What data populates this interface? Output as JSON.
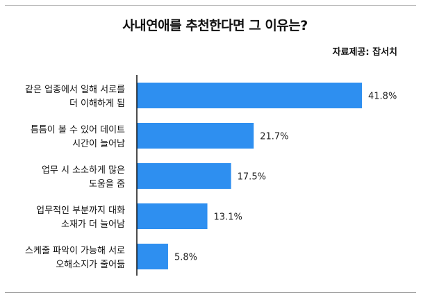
{
  "title": "사내연애를 추천한다면 그 이유는?",
  "source": "자료제공: 잡서치",
  "colors": {
    "bar": "#2e8ff0",
    "axis": "#111111",
    "rule": "#9a9a9a"
  },
  "chart_data": {
    "type": "bar",
    "orientation": "horizontal",
    "categories": [
      [
        "같은 업종에서 일해 서로를",
        "더 이해하게 됨"
      ],
      [
        "틈틈이 볼 수 있어 데이트",
        "시간이 늘어남"
      ],
      [
        "업무 시 소소하게 많은",
        "도움을 줌"
      ],
      [
        "업무적인 부분까지 대화",
        "소재가 더 늘어남"
      ],
      [
        "스케줄 파악이 가능해 서로",
        "오해소지가 줄어듦"
      ]
    ],
    "values": [
      41.8,
      21.7,
      17.5,
      13.1,
      5.8
    ],
    "value_labels": [
      "41.8%",
      "21.7%",
      "17.5%",
      "13.1%",
      "5.8%"
    ],
    "xlim": [
      0,
      41.8
    ],
    "grid": false,
    "legend": "none"
  }
}
